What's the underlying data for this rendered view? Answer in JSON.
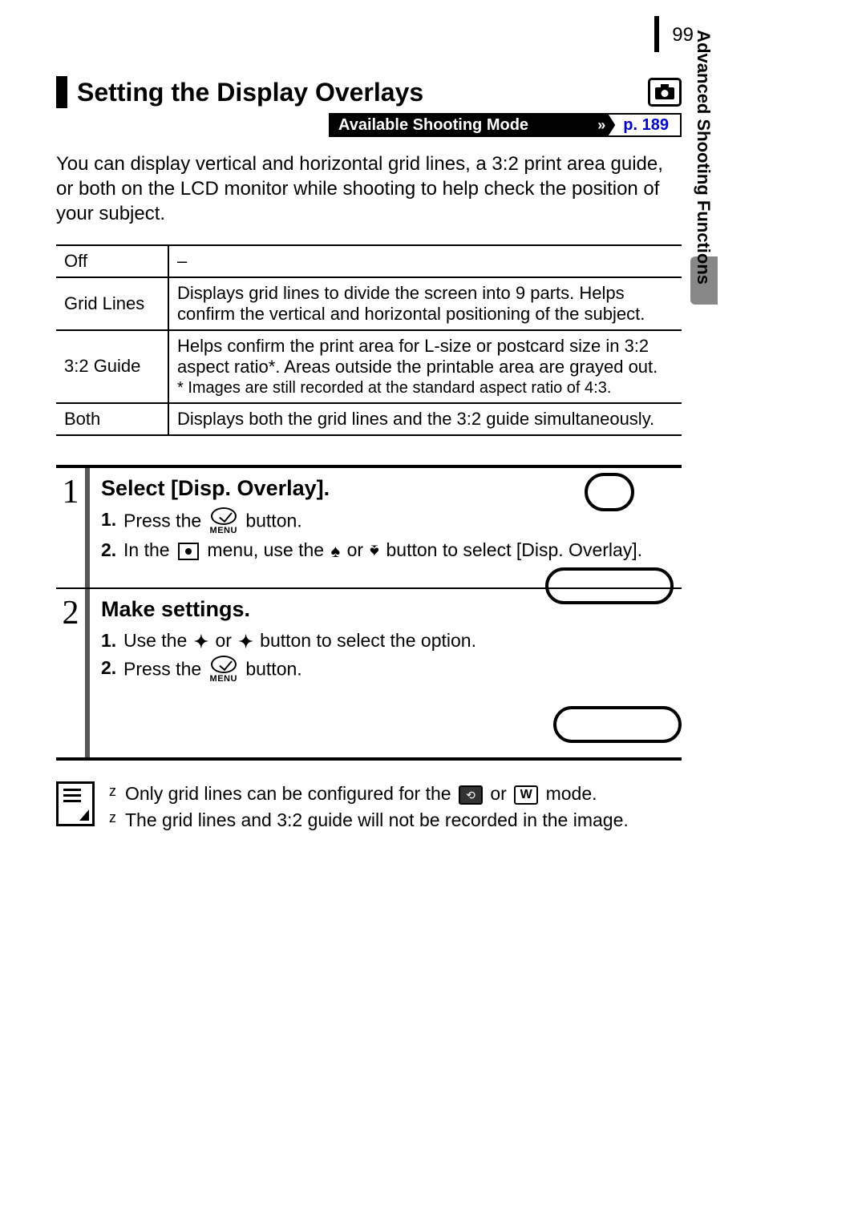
{
  "page_number": "99",
  "side_label": "Advanced Shooting Functions",
  "section_title": "Setting the Display Overlays",
  "mode_bar": {
    "label": "Available Shooting Mode",
    "link": "p. 189"
  },
  "intro": "You can display vertical and horizontal grid lines, a 3:2 print area guide, or both on the LCD monitor while shooting to help check the position of your subject.",
  "table": {
    "rows": [
      {
        "label": "Off",
        "desc": "–",
        "footnote": ""
      },
      {
        "label": "Grid Lines",
        "desc": "Displays grid lines to divide the screen into 9 parts. Helps confirm the vertical and horizontal positioning of the subject.",
        "footnote": ""
      },
      {
        "label": "3:2 Guide",
        "desc": "Helps confirm the print area for L-size or postcard size in 3:2 aspect ratio*. Areas outside the printable area are grayed out.",
        "footnote": "* Images are still recorded at the standard aspect ratio of 4:3."
      },
      {
        "label": "Both",
        "desc": "Displays both the grid lines and the 3:2 guide simultaneously.",
        "footnote": ""
      }
    ]
  },
  "steps": [
    {
      "num": "1",
      "title": "Select [Disp. Overlay].",
      "subs": [
        {
          "n": "1.",
          "pre": "Press the ",
          "post": " button.",
          "icon": "menu"
        },
        {
          "n": "2.",
          "pre": "In the ",
          "mid1": " menu, use the ",
          "mid2": " or ",
          "post": " button to select [Disp. Overlay].",
          "icon": "rec-arrows"
        }
      ]
    },
    {
      "num": "2",
      "title": "Make settings.",
      "subs": [
        {
          "n": "1.",
          "pre": "Use the ",
          "mid2": " or ",
          "post": " button to select the option.",
          "icon": "lr-arrows"
        },
        {
          "n": "2.",
          "pre": "Press the ",
          "post": " button.",
          "icon": "menu"
        }
      ]
    }
  ],
  "notes": [
    {
      "pre": "Only grid lines can be configured for the ",
      "mid": " or ",
      "post": " mode."
    },
    {
      "text": "The grid lines and 3:2 guide will not be recorded in the image."
    }
  ],
  "glyphs": {
    "up": "✦",
    "down": "✦",
    "left": "←",
    "right": "→"
  },
  "colors": {
    "link": "#0000cc",
    "bar": "#555555"
  }
}
